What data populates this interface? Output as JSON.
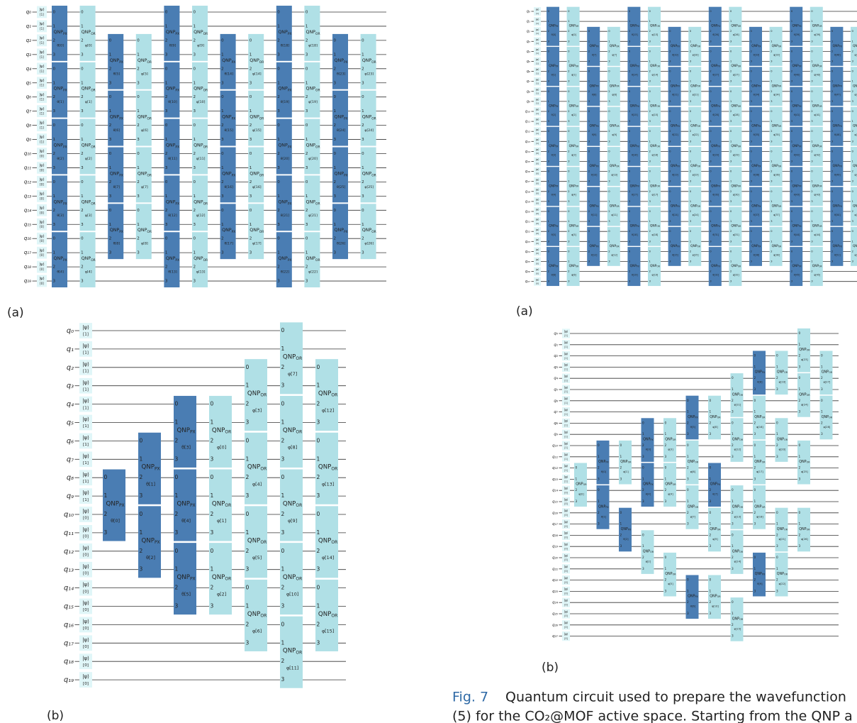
{
  "gate_names": {
    "px": {
      "name": "QNP",
      "sub": "PX",
      "color": "#4a7db3"
    },
    "or": {
      "name": "QNP",
      "sub": "OR",
      "color": "#b0e0e6"
    }
  },
  "circuits": [
    {
      "label": "(a)",
      "state": "|ψ⟩",
      "ports": [
        "0",
        "1",
        "2",
        "3"
      ],
      "qubits": [
        "q₀",
        "q₁",
        "q₂",
        "q₃",
        "q₄",
        "q₅",
        "q₆",
        "q₇",
        "q₈",
        "q₉",
        "q₁₀",
        "q₁₁",
        "q₁₂",
        "q₁₃",
        "q₁₄",
        "q₁₅",
        "q₁₆",
        "q₁₇",
        "q₁₈",
        "q₁₉"
      ],
      "init": [
        "[1]",
        "[1]",
        "[1]",
        "[1]",
        "[1]",
        "[1]",
        "[1]",
        "[1]",
        "[1]",
        "[1]",
        "[0]",
        "[0]",
        "[0]",
        "[0]",
        "[0]",
        "[0]",
        "[0]",
        "[0]",
        "[0]",
        "[0]"
      ],
      "columns": [
        {
          "type": "px",
          "qubits": [
            0,
            4,
            8,
            12,
            16
          ],
          "params": [
            "θ[0]",
            "θ[1]",
            "θ[2]",
            "θ[3]",
            "θ[4]"
          ]
        },
        {
          "type": "or",
          "qubits": [
            0,
            4,
            8,
            12,
            16
          ],
          "params": [
            "φ[0]",
            "φ[1]",
            "φ[2]",
            "φ[3]",
            "φ[4]"
          ]
        },
        {
          "type": "px",
          "qubits": [
            2,
            6,
            10,
            14
          ],
          "params": [
            "θ[5]",
            "θ[6]",
            "θ[7]",
            "θ[8]"
          ]
        },
        {
          "type": "or",
          "qubits": [
            2,
            6,
            10,
            14
          ],
          "params": [
            "φ[5]",
            "φ[6]",
            "φ[7]",
            "φ[8]"
          ]
        },
        {
          "type": "px",
          "qubits": [
            0,
            4,
            8,
            12,
            16
          ],
          "params": [
            "θ[9]",
            "θ[10]",
            "θ[11]",
            "θ[12]",
            "θ[13]"
          ]
        },
        {
          "type": "or",
          "qubits": [
            0,
            4,
            8,
            12,
            16
          ],
          "params": [
            "φ[9]",
            "φ[10]",
            "φ[11]",
            "φ[12]",
            "φ[13]"
          ]
        },
        {
          "type": "px",
          "qubits": [
            2,
            6,
            10,
            14
          ],
          "params": [
            "θ[14]",
            "θ[15]",
            "θ[16]",
            "θ[17]"
          ]
        },
        {
          "type": "or",
          "qubits": [
            2,
            6,
            10,
            14
          ],
          "params": [
            "φ[14]",
            "φ[15]",
            "φ[16]",
            "φ[17]"
          ]
        },
        {
          "type": "px",
          "qubits": [
            0,
            4,
            8,
            12,
            16
          ],
          "params": [
            "θ[18]",
            "θ[19]",
            "θ[20]",
            "θ[21]",
            "θ[22]"
          ]
        },
        {
          "type": "or",
          "qubits": [
            0,
            4,
            8,
            12,
            16
          ],
          "params": [
            "φ[18]",
            "φ[19]",
            "φ[20]",
            "φ[21]",
            "φ[22]"
          ]
        },
        {
          "type": "px",
          "qubits": [
            2,
            6,
            10,
            14
          ],
          "params": [
            "θ[23]",
            "θ[24]",
            "θ[25]",
            "θ[26]"
          ]
        },
        {
          "type": "or",
          "qubits": [
            2,
            6,
            10,
            14
          ],
          "params": [
            "φ[23]",
            "φ[24]",
            "φ[25]",
            "φ[26]"
          ]
        }
      ]
    },
    {
      "label": "(b)",
      "state": "|ψ⟩",
      "ports": [
        "0",
        "1",
        "2",
        "3"
      ],
      "qubits": [
        "q₀",
        "q₁",
        "q₂",
        "q₃",
        "q₄",
        "q₅",
        "q₆",
        "q₇",
        "q₈",
        "q₉",
        "q₁₀",
        "q₁₁",
        "q₁₂",
        "q₁₃",
        "q₁₄",
        "q₁₅",
        "q₁₆",
        "q₁₇",
        "q₁₈",
        "q₁₉"
      ],
      "init": [
        "[1]",
        "[1]",
        "[1]",
        "[1]",
        "[1]",
        "[1]",
        "[1]",
        "[1]",
        "[1]",
        "[1]",
        "[0]",
        "[0]",
        "[0]",
        "[0]",
        "[0]",
        "[0]",
        "[0]",
        "[0]",
        "[0]",
        "[0]"
      ],
      "columns": [
        {
          "type": "px",
          "qubits": [
            8
          ],
          "params": [
            "θ[0]"
          ]
        },
        {
          "type": "px",
          "qubits": [
            6,
            10
          ],
          "params": [
            "θ[1]",
            "θ[2]"
          ]
        },
        {
          "type": "px",
          "qubits": [
            4,
            8,
            12
          ],
          "params": [
            "θ[3]",
            "θ[4]",
            "θ[5]"
          ]
        },
        {
          "type": "or",
          "qubits": [
            4,
            8,
            12
          ],
          "params": [
            "φ[0]",
            "φ[1]",
            "φ[2]"
          ]
        },
        {
          "type": "or",
          "qubits": [
            2,
            6,
            10,
            14
          ],
          "params": [
            "φ[3]",
            "φ[4]",
            "φ[5]",
            "φ[6]"
          ]
        },
        {
          "type": "or",
          "qubits": [
            0,
            4,
            8,
            12,
            16
          ],
          "params": [
            "φ[7]",
            "φ[8]",
            "φ[9]",
            "φ[10]",
            "φ[11]"
          ]
        },
        {
          "type": "or",
          "qubits": [
            2,
            6,
            10,
            14
          ],
          "params": [
            "φ[12]",
            "φ[13]",
            "φ[14]",
            "φ[15]"
          ]
        }
      ]
    },
    {
      "label": "(a)",
      "state": "|ψ⟩",
      "ports": [
        "0",
        "1",
        "2",
        "3"
      ],
      "qubits": [
        "q₀",
        "q₁",
        "q₂",
        "q₃",
        "q₄",
        "q₅",
        "q₆",
        "q₇",
        "q₈",
        "q₉",
        "q₁₀",
        "q₁₁",
        "q₁₂",
        "q₁₃",
        "q₁₄",
        "q₁₅",
        "q₁₆",
        "q₁₇",
        "q₁₈",
        "q₁₉",
        "q₂₀",
        "q₂₁",
        "q₂₂",
        "q₂₃",
        "q₂₄",
        "q₂₅",
        "q₂₆",
        "q₂₇"
      ],
      "init": [
        "[1]",
        "[1]",
        "[1]",
        "[1]",
        "[1]",
        "[1]",
        "[1]",
        "[1]",
        "[1]",
        "[1]",
        "[1]",
        "[1]",
        "[1]",
        "[1]",
        "[0]",
        "[0]",
        "[0]",
        "[0]",
        "[0]",
        "[0]",
        "[0]",
        "[0]",
        "[0]",
        "[0]",
        "[0]",
        "[0]",
        "[0]",
        "[0]"
      ],
      "columns": [
        {
          "type": "px",
          "qubits": [
            0,
            4,
            8,
            12,
            16,
            20,
            24
          ],
          "params": [
            "θ[0]",
            "θ[1]",
            "θ[2]",
            "θ[3]",
            "θ[4]",
            "θ[5]",
            "θ[6]"
          ]
        },
        {
          "type": "or",
          "qubits": [
            0,
            4,
            8,
            12,
            16,
            20,
            24
          ],
          "params": [
            "φ[0]",
            "φ[1]",
            "φ[2]",
            "φ[3]",
            "φ[4]",
            "φ[5]",
            "φ[6]"
          ]
        },
        {
          "type": "px",
          "qubits": [
            2,
            6,
            10,
            14,
            18,
            22
          ],
          "params": [
            "θ[7]",
            "θ[8]",
            "θ[9]",
            "θ[10]",
            "θ[11]",
            "θ[12]"
          ]
        },
        {
          "type": "or",
          "qubits": [
            2,
            6,
            10,
            14,
            18,
            22
          ],
          "params": [
            "φ[7]",
            "φ[8]",
            "φ[9]",
            "φ[10]",
            "φ[11]",
            "φ[12]"
          ]
        },
        {
          "type": "px",
          "qubits": [
            0,
            4,
            8,
            12,
            16,
            20,
            24
          ],
          "params": [
            "θ[13]",
            "θ[14]",
            "θ[15]",
            "θ[16]",
            "θ[17]",
            "θ[18]",
            "θ[19]"
          ]
        },
        {
          "type": "or",
          "qubits": [
            0,
            4,
            8,
            12,
            16,
            20,
            24
          ],
          "params": [
            "φ[13]",
            "φ[14]",
            "φ[15]",
            "φ[16]",
            "φ[17]",
            "φ[18]",
            "φ[19]"
          ]
        },
        {
          "type": "px",
          "qubits": [
            2,
            6,
            10,
            14,
            18,
            22
          ],
          "params": [
            "θ[20]",
            "θ[21]",
            "θ[22]",
            "θ[23]",
            "θ[24]",
            "θ[25]"
          ]
        },
        {
          "type": "or",
          "qubits": [
            2,
            6,
            10,
            14,
            18,
            22
          ],
          "params": [
            "φ[20]",
            "φ[21]",
            "φ[22]",
            "φ[23]",
            "φ[24]",
            "φ[25]"
          ]
        },
        {
          "type": "px",
          "qubits": [
            0,
            4,
            8,
            12,
            16,
            20,
            24
          ],
          "params": [
            "θ[26]",
            "θ[27]",
            "θ[28]",
            "θ[29]",
            "θ[30]",
            "θ[31]",
            "θ[32]"
          ]
        },
        {
          "type": "or",
          "qubits": [
            0,
            4,
            8,
            12,
            16,
            20,
            24
          ],
          "params": [
            "φ[26]",
            "φ[27]",
            "φ[28]",
            "φ[29]",
            "φ[30]",
            "φ[31]",
            "φ[32]"
          ]
        },
        {
          "type": "px",
          "qubits": [
            2,
            6,
            10,
            14,
            18,
            22
          ],
          "params": [
            "θ[33]",
            "θ[34]",
            "θ[35]",
            "θ[36]",
            "θ[37]",
            "θ[38]"
          ]
        },
        {
          "type": "or",
          "qubits": [
            2,
            6,
            10,
            14,
            18,
            22
          ],
          "params": [
            "φ[33]",
            "φ[34]",
            "φ[35]",
            "φ[36]",
            "φ[37]",
            "φ[38]"
          ]
        },
        {
          "type": "px",
          "qubits": [
            0,
            4,
            8,
            12,
            16,
            20,
            24
          ],
          "params": [
            "θ[39]",
            "θ[40]",
            "θ[41]",
            "θ[42]",
            "θ[43]",
            "θ[44]",
            "θ[45]"
          ]
        },
        {
          "type": "or",
          "qubits": [
            0,
            4,
            8,
            12,
            16,
            20,
            24
          ],
          "params": [
            "φ[39]",
            "φ[40]",
            "φ[41]",
            "φ[42]",
            "φ[43]",
            "φ[44]",
            "φ[45]"
          ]
        },
        {
          "type": "px",
          "qubits": [
            2,
            6,
            10,
            14,
            18,
            22
          ],
          "params": [
            "θ[46]",
            "θ[47]",
            "θ[48]",
            "θ[49]",
            "θ[50]",
            "θ[51]"
          ]
        },
        {
          "type": "or",
          "qubits": [
            2,
            6,
            10,
            14,
            18,
            22
          ],
          "params": [
            "φ[46]",
            "φ[47]",
            "φ[48]",
            "φ[49]",
            "φ[50]",
            "φ[51]"
          ]
        }
      ]
    },
    {
      "label": "(b)",
      "state": "|ψ⟩",
      "ports": [
        "0",
        "1",
        "2",
        "3"
      ],
      "qubits": [
        "q₀",
        "q₁",
        "q₂",
        "q₃",
        "q₄",
        "q₅",
        "q₆",
        "q₇",
        "q₈",
        "q₉",
        "q₁₀",
        "q₁₁",
        "q₁₂",
        "q₁₃",
        "q₁₄",
        "q₁₅",
        "q₁₆",
        "q₁₇",
        "q₁₈",
        "q₁₉",
        "q₂₀",
        "q₂₁",
        "q₂₂",
        "q₂₃",
        "q₂₄",
        "q₂₅",
        "q₂₆",
        "q₂₇"
      ],
      "init": [
        "[1]",
        "[1]",
        "[1]",
        "[1]",
        "[1]",
        "[1]",
        "[1]",
        "[1]",
        "[1]",
        "[1]",
        "[1]",
        "[1]",
        "[1]",
        "[1]",
        "[0]",
        "[0]",
        "[0]",
        "[0]",
        "[0]",
        "[0]",
        "[0]",
        "[0]",
        "[0]",
        "[0]",
        "[0]",
        "[0]",
        "[0]",
        "[0]"
      ],
      "columns": [
        {
          "types": [
            "or"
          ],
          "qubits": [
            12
          ],
          "params": [
            "φ[0]"
          ]
        },
        {
          "types": [
            "px",
            "px"
          ],
          "qubits": [
            10,
            14
          ],
          "params": [
            "θ[0]",
            "θ[1]"
          ]
        },
        {
          "types": [
            "or",
            "px"
          ],
          "qubits": [
            10,
            16
          ],
          "params": [
            "φ[1]",
            "θ[2]"
          ]
        },
        {
          "types": [
            "px",
            "px",
            "or"
          ],
          "qubits": [
            8,
            12,
            18
          ],
          "params": [
            "θ[3]",
            "θ[4]",
            "φ[2]"
          ]
        },
        {
          "types": [
            "or",
            "or",
            "or"
          ],
          "qubits": [
            8,
            12,
            20
          ],
          "params": [
            "φ[3]",
            "φ[4]",
            "φ[5]"
          ]
        },
        {
          "types": [
            "px",
            "or",
            "or",
            "px"
          ],
          "qubits": [
            6,
            10,
            14,
            22
          ],
          "params": [
            "θ[5]",
            "φ[6]",
            "φ[7]",
            "θ[6]"
          ]
        },
        {
          "types": [
            "or",
            "px",
            "or",
            "or"
          ],
          "qubits": [
            6,
            12,
            16,
            22
          ],
          "params": [
            "φ[8]",
            "θ[7]",
            "φ[9]",
            "φ[10]"
          ]
        },
        {
          "types": [
            "or",
            "or",
            "or",
            "or",
            "or"
          ],
          "qubits": [
            4,
            8,
            14,
            18,
            24
          ],
          "params": [
            "φ[11]",
            "φ[12]",
            "φ[13]",
            "φ[14]",
            "φ[15]"
          ]
        },
        {
          "types": [
            "px",
            "or",
            "or",
            "or",
            "px"
          ],
          "qubits": [
            2,
            6,
            10,
            14,
            20
          ],
          "params": [
            "θ[8]",
            "φ[16]",
            "φ[17]",
            "φ[18]",
            "θ[9]"
          ]
        },
        {
          "types": [
            "or",
            "or",
            "or",
            "or"
          ],
          "qubits": [
            2,
            8,
            16,
            20
          ],
          "params": [
            "φ[19]",
            "φ[20]",
            "φ[21]",
            "φ[22]"
          ]
        },
        {
          "types": [
            "or",
            "or",
            "or",
            "or"
          ],
          "qubits": [
            0,
            4,
            10,
            16
          ],
          "params": [
            "φ[23]",
            "φ[24]",
            "φ[25]",
            "φ[26]"
          ]
        },
        {
          "types": [
            "or",
            "or"
          ],
          "qubits": [
            2,
            6
          ],
          "params": [
            "φ[27]",
            "φ[28]"
          ]
        }
      ]
    }
  ],
  "caption": {
    "fig": "Fig. 7",
    "lines": [
      "Quantum circuit used to prepare the wavefunction",
      "(5) for the CO₂@MOF active space. Starting from the QNP a"
    ]
  }
}
